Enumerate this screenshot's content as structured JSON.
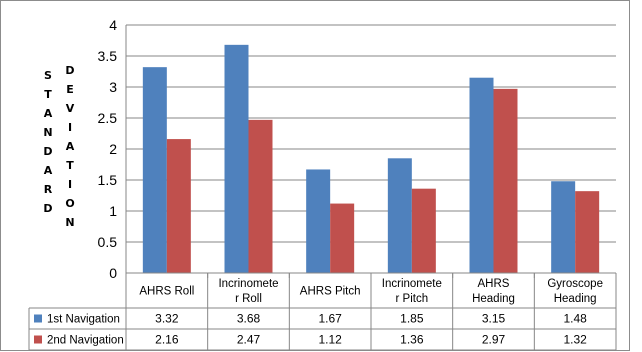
{
  "chart_data": {
    "type": "bar",
    "title": "",
    "xlabel": "",
    "ylabel": "STANDARD DEVIATION",
    "ylabel_columns": [
      "STANDARD",
      "DEVIATION"
    ],
    "ylim": [
      0,
      4
    ],
    "yticks": [
      "0",
      "0.5",
      "1",
      "1.5",
      "2",
      "2.5",
      "3",
      "3.5",
      "4"
    ],
    "grid": true,
    "legend": "data-table",
    "categories": [
      [
        "AHRS Roll"
      ],
      [
        "Incrinomete",
        "r Roll"
      ],
      [
        "AHRS Pitch"
      ],
      [
        "Incrinomete",
        "r Pitch"
      ],
      [
        "AHRS",
        "Heading"
      ],
      [
        "Gyroscope",
        "Heading"
      ]
    ],
    "series": [
      {
        "name": "1st Navigation",
        "color": "#4f81bd",
        "values": [
          3.32,
          3.68,
          1.67,
          1.85,
          3.15,
          1.48
        ],
        "labels": [
          "3.32",
          "3.68",
          "1.67",
          "1.85",
          "3.15",
          "1.48"
        ]
      },
      {
        "name": "2nd Navigation",
        "color": "#c0504d",
        "values": [
          2.16,
          2.47,
          1.12,
          1.36,
          2.97,
          1.32
        ],
        "labels": [
          "2.16",
          "2.47",
          "1.12",
          "1.36",
          "2.97",
          "1.32"
        ]
      }
    ]
  }
}
